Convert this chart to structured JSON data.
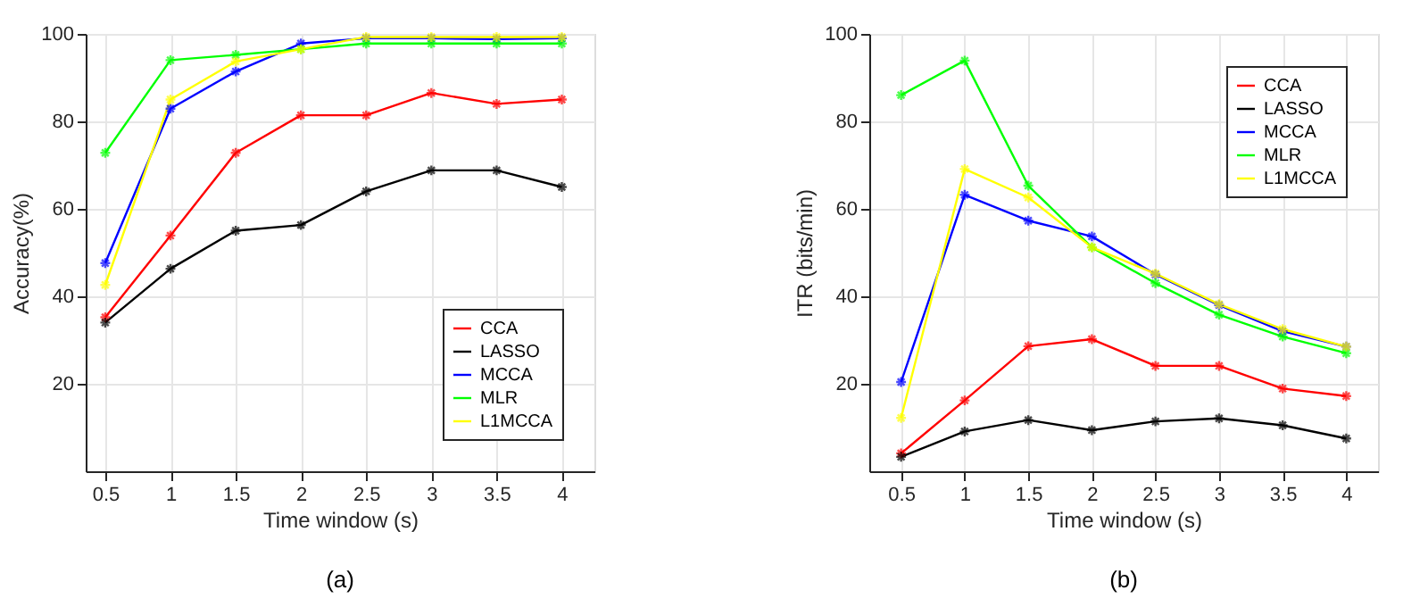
{
  "chart_data": [
    {
      "type": "line",
      "xlabel": "Time window (s)",
      "ylabel": "Accuracy(%)",
      "annotations": [
        "(a)"
      ],
      "x": [
        0.5,
        1,
        1.5,
        2,
        2.5,
        3,
        3.5,
        4
      ],
      "xlim": [
        0.35,
        4.25
      ],
      "xticks": [
        0.5,
        1,
        1.5,
        2,
        2.5,
        3,
        3.5,
        4
      ],
      "ylim": [
        0,
        100
      ],
      "yticks": [
        20,
        40,
        60,
        80,
        100
      ],
      "grid": true,
      "legend": "bottom right",
      "marker": "cross",
      "line_style": "solid",
      "series": [
        {
          "name": "CCA",
          "color": "#ff0000",
          "values": [
            35.2,
            53.9,
            72.8,
            81.4,
            81.4,
            86.5,
            84,
            85
          ]
        },
        {
          "name": "LASSO",
          "color": "#000000",
          "values": [
            34,
            46.3,
            55,
            56.3,
            64,
            68.8,
            68.8,
            65
          ]
        },
        {
          "name": "MCCA",
          "color": "#0000ff",
          "values": [
            47.6,
            82.9,
            91.4,
            97.8,
            99,
            99,
            98.8,
            99
          ]
        },
        {
          "name": "MLR",
          "color": "#00ff00",
          "values": [
            72.8,
            94,
            95.2,
            96.5,
            97.8,
            97.8,
            97.8,
            97.8
          ]
        },
        {
          "name": "L1MCCA",
          "color": "#ffff00",
          "values": [
            42.6,
            85,
            93.7,
            96.5,
            99.3,
            99.3,
            99.3,
            99.3
          ]
        }
      ]
    },
    {
      "type": "line",
      "xlabel": "Time window (s)",
      "ylabel": "ITR (bits/min)",
      "annotations": [
        "(b)"
      ],
      "x": [
        0.5,
        1,
        1.5,
        2,
        2.5,
        3,
        3.5,
        4
      ],
      "xlim": [
        0.25,
        4.25
      ],
      "xticks": [
        0.5,
        1,
        1.5,
        2,
        2.5,
        3,
        3.5,
        4
      ],
      "ylim": [
        0,
        100
      ],
      "yticks": [
        20,
        40,
        60,
        80,
        100
      ],
      "grid": true,
      "legend": "top right",
      "marker": "cross",
      "line_style": "solid",
      "series": [
        {
          "name": "CCA",
          "color": "#ff0000",
          "values": [
            4.1,
            16.2,
            28.6,
            30.2,
            24.1,
            24.1,
            18.9,
            17.2
          ]
        },
        {
          "name": "LASSO",
          "color": "#000000",
          "values": [
            3.3,
            9.1,
            11.7,
            9.4,
            11.4,
            12.1,
            10.5,
            7.5
          ]
        },
        {
          "name": "MCCA",
          "color": "#0000ff",
          "values": [
            20.4,
            63.2,
            57.3,
            53.7,
            45,
            38,
            32,
            28.5
          ]
        },
        {
          "name": "MLR",
          "color": "#00ff00",
          "values": [
            86,
            93.9,
            65.3,
            51.2,
            43,
            35.8,
            30.8,
            27
          ]
        },
        {
          "name": "L1MCCA",
          "color": "#ffff00",
          "values": [
            12.2,
            69.1,
            62.6,
            51.2,
            45.2,
            38.2,
            32.5,
            28.5
          ]
        }
      ]
    }
  ]
}
